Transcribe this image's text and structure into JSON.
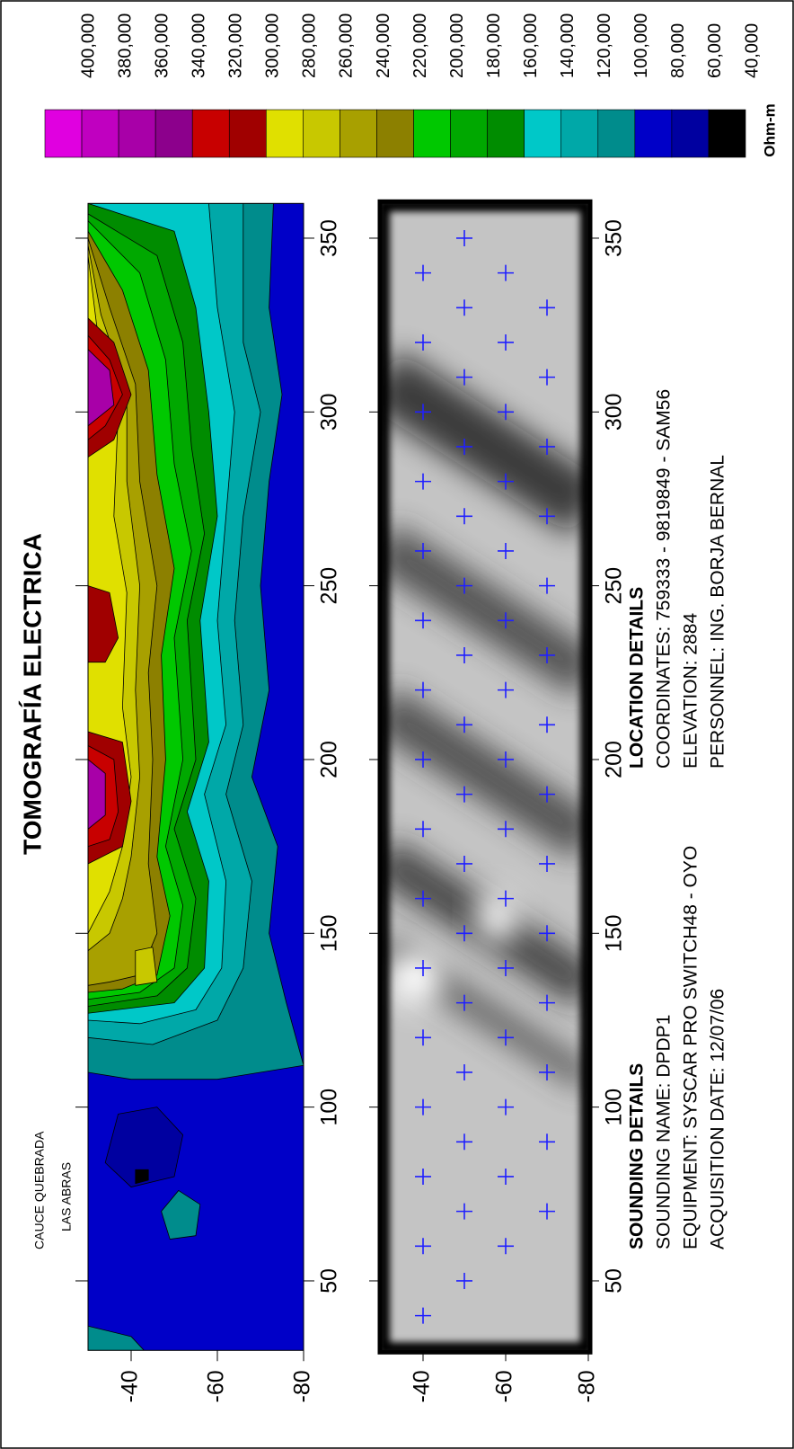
{
  "title": "TOMOGRAFÍA ELECTRICA",
  "annotation": [
    "CAUCE QUEBRADA",
    "LAS ABRAS"
  ],
  "colorbar": {
    "title": "Ohm-m",
    "levels": [
      {
        "value": 400000,
        "label": "400,000"
      },
      {
        "value": 380000,
        "label": "380,000"
      },
      {
        "value": 360000,
        "label": "360,000"
      },
      {
        "value": 340000,
        "label": "340,000"
      },
      {
        "value": 320000,
        "label": "320,000"
      },
      {
        "value": 300000,
        "label": "300,000"
      },
      {
        "value": 280000,
        "label": "280,000"
      },
      {
        "value": 260000,
        "label": "260,000"
      },
      {
        "value": 240000,
        "label": "240,000"
      },
      {
        "value": 220000,
        "label": "220,000"
      },
      {
        "value": 200000,
        "label": "200,000"
      },
      {
        "value": 180000,
        "label": "180,000"
      },
      {
        "value": 160000,
        "label": "160,000"
      },
      {
        "value": 140000,
        "label": "140,000"
      },
      {
        "value": 120000,
        "label": "120,000"
      },
      {
        "value": 100000,
        "label": "100,000"
      },
      {
        "value": 80000,
        "label": "80,000"
      },
      {
        "value": 60000,
        "label": "60,000"
      },
      {
        "value": 40000,
        "label": "40,000"
      }
    ],
    "colors": [
      "#e000e0",
      "#c000c0",
      "#a800a8",
      "#8c008c",
      "#c80000",
      "#a00000",
      "#e0e000",
      "#c8c800",
      "#a8a000",
      "#8c8000",
      "#00c800",
      "#00a800",
      "#008c00",
      "#00c8c8",
      "#00a8a8",
      "#008c8c",
      "#0000c8",
      "#0000a0",
      "#000000"
    ]
  },
  "chart_data": [
    {
      "type": "contour",
      "xlim": [
        30,
        360
      ],
      "ylim": [
        -80,
        -30
      ],
      "xticks": [
        50,
        100,
        150,
        200,
        250,
        300,
        350
      ],
      "yticks": [
        -40,
        -60,
        -80
      ]
    },
    {
      "type": "scatter",
      "xlim": [
        30,
        360
      ],
      "ylim": [
        -80,
        -30
      ],
      "xticks": [
        50,
        100,
        150,
        200,
        250,
        300,
        350
      ],
      "yticks": [
        -40,
        -60,
        -80
      ],
      "color": "#2020ff",
      "x": [
        40,
        60,
        80,
        100,
        120,
        140,
        160,
        180,
        200,
        220,
        240,
        260,
        280,
        300,
        320,
        340,
        50,
        70,
        90,
        110,
        130,
        150,
        170,
        190,
        210,
        230,
        250,
        270,
        290,
        310,
        330,
        350,
        60,
        80,
        100,
        120,
        140,
        160,
        180,
        200,
        220,
        240,
        260,
        280,
        300,
        320,
        340,
        70,
        90,
        110,
        130,
        150,
        170,
        190,
        210,
        230,
        250,
        270,
        290,
        310,
        330
      ],
      "values": [
        -40,
        -40,
        -40,
        -40,
        -40,
        -40,
        -40,
        -40,
        -40,
        -40,
        -40,
        -40,
        -40,
        -40,
        -40,
        -40,
        -50,
        -50,
        -50,
        -50,
        -50,
        -50,
        -50,
        -50,
        -50,
        -50,
        -50,
        -50,
        -50,
        -50,
        -50,
        -50,
        -60,
        -60,
        -60,
        -60,
        -60,
        -60,
        -60,
        -60,
        -60,
        -60,
        -60,
        -60,
        -60,
        -60,
        -60,
        -70,
        -70,
        -70,
        -70,
        -70,
        -70,
        -70,
        -70,
        -70,
        -70,
        -70,
        -70,
        -70,
        -70
      ]
    }
  ],
  "sounding_details": {
    "heading": "SOUNDING DETAILS",
    "lines": [
      "SOUNDING NAME: DPDP1",
      "EQUIPMENT: SYSCAR PRO SWITCH48 - OYO",
      "ACQUISITION DATE: 12/07/06"
    ]
  },
  "location_details": {
    "heading": "LOCATION DETAILS",
    "lines": [
      "COORDINATES: 759333 - 9819849 - SAM56",
      "ELEVATION: 2884",
      "PERSONNEL: ING. BORJA BERNAL"
    ]
  }
}
